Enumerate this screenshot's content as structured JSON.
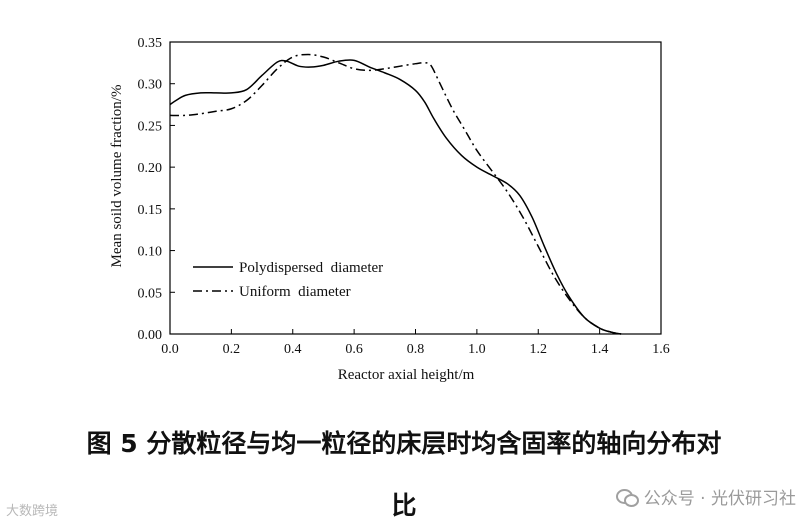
{
  "chart_data": {
    "type": "line",
    "xlabel": "Reactor axial height/m",
    "ylabel": "Mean soild volume fraction/%",
    "xlim": [
      0.0,
      1.6
    ],
    "ylim": [
      0.0,
      0.35
    ],
    "xticks": [
      "0.0",
      "0.2",
      "0.4",
      "0.6",
      "0.8",
      "1.0",
      "1.2",
      "1.4",
      "1.6"
    ],
    "yticks": [
      "0.00",
      "0.05",
      "0.10",
      "0.15",
      "0.20",
      "0.25",
      "0.30",
      "0.35"
    ],
    "grid": false,
    "legend_position": "bottom-left",
    "series": [
      {
        "name": "Polydispersed  diameter",
        "style": "solid",
        "color": "#000000",
        "x": [
          0.0,
          0.02,
          0.05,
          0.1,
          0.15,
          0.2,
          0.25,
          0.3,
          0.35,
          0.38,
          0.42,
          0.46,
          0.5,
          0.55,
          0.6,
          0.65,
          0.7,
          0.75,
          0.8,
          0.83,
          0.86,
          0.9,
          0.95,
          1.0,
          1.05,
          1.1,
          1.14,
          1.18,
          1.22,
          1.26,
          1.3,
          1.35,
          1.4,
          1.44,
          1.47
        ],
        "y": [
          0.275,
          0.28,
          0.286,
          0.289,
          0.289,
          0.289,
          0.293,
          0.31,
          0.326,
          0.327,
          0.321,
          0.32,
          0.322,
          0.327,
          0.328,
          0.32,
          0.313,
          0.305,
          0.292,
          0.278,
          0.258,
          0.235,
          0.214,
          0.2,
          0.19,
          0.18,
          0.166,
          0.14,
          0.105,
          0.072,
          0.045,
          0.02,
          0.007,
          0.002,
          0.0
        ]
      },
      {
        "name": "Uniform  diameter",
        "style": "dashdot",
        "color": "#000000",
        "x": [
          0.0,
          0.05,
          0.1,
          0.15,
          0.2,
          0.25,
          0.3,
          0.35,
          0.4,
          0.45,
          0.5,
          0.55,
          0.6,
          0.65,
          0.7,
          0.75,
          0.8,
          0.83,
          0.85,
          0.88,
          0.92,
          0.96,
          1.0,
          1.05,
          1.1,
          1.15,
          1.2,
          1.25,
          1.3,
          1.35,
          1.4,
          1.44,
          1.47
        ],
        "y": [
          0.262,
          0.262,
          0.264,
          0.267,
          0.27,
          0.28,
          0.298,
          0.318,
          0.332,
          0.335,
          0.332,
          0.325,
          0.318,
          0.316,
          0.318,
          0.321,
          0.324,
          0.325,
          0.322,
          0.3,
          0.27,
          0.245,
          0.22,
          0.195,
          0.17,
          0.14,
          0.105,
          0.07,
          0.042,
          0.02,
          0.007,
          0.002,
          0.0
        ]
      }
    ]
  },
  "caption": {
    "line1": "图 5 分散粒径与均一粒径的床层时均含固率的轴向分布对",
    "line2": "比"
  },
  "watermark": {
    "left": "大数跨境",
    "right": "公众号 · 光伏研习社"
  }
}
